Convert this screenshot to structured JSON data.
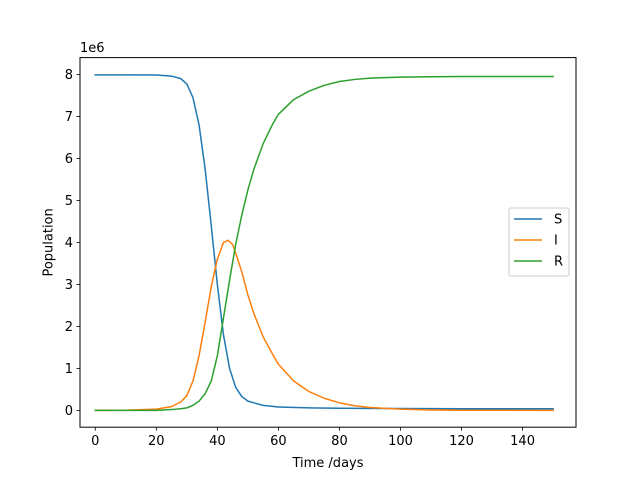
{
  "chart_data": {
    "type": "line",
    "xlabel": "Time /days",
    "ylabel": "Population",
    "y_offset_label": "1e6",
    "xlim": [
      -5,
      157.5
    ],
    "ylim": [
      -0.4,
      8.4
    ],
    "x_ticks": [
      0,
      20,
      40,
      60,
      80,
      100,
      120,
      140
    ],
    "y_ticks": [
      0,
      1,
      2,
      3,
      4,
      5,
      6,
      7,
      8
    ],
    "grid": false,
    "legend_position": "center-right",
    "series": [
      {
        "name": "S",
        "color": "#1f77b4",
        "points": [
          [
            0,
            7.99
          ],
          [
            10,
            7.99
          ],
          [
            20,
            7.985
          ],
          [
            25,
            7.96
          ],
          [
            28,
            7.9
          ],
          [
            30,
            7.77
          ],
          [
            32,
            7.45
          ],
          [
            34,
            6.8
          ],
          [
            36,
            5.75
          ],
          [
            38,
            4.4
          ],
          [
            40,
            3.0
          ],
          [
            42,
            1.8
          ],
          [
            44,
            1.0
          ],
          [
            46,
            0.55
          ],
          [
            48,
            0.33
          ],
          [
            50,
            0.22
          ],
          [
            55,
            0.12
          ],
          [
            60,
            0.08
          ],
          [
            70,
            0.06
          ],
          [
            80,
            0.05
          ],
          [
            100,
            0.045
          ],
          [
            120,
            0.04
          ],
          [
            150,
            0.04
          ]
        ]
      },
      {
        "name": "I",
        "color": "#ff7f0e",
        "points": [
          [
            0,
            0.0
          ],
          [
            10,
            0.005
          ],
          [
            20,
            0.03
          ],
          [
            25,
            0.09
          ],
          [
            28,
            0.2
          ],
          [
            30,
            0.35
          ],
          [
            32,
            0.7
          ],
          [
            34,
            1.3
          ],
          [
            36,
            2.1
          ],
          [
            38,
            2.95
          ],
          [
            40,
            3.6
          ],
          [
            42,
            4.0
          ],
          [
            43.5,
            4.05
          ],
          [
            45,
            3.95
          ],
          [
            46,
            3.75
          ],
          [
            48,
            3.3
          ],
          [
            50,
            2.75
          ],
          [
            52,
            2.3
          ],
          [
            55,
            1.75
          ],
          [
            58,
            1.35
          ],
          [
            60,
            1.1
          ],
          [
            65,
            0.7
          ],
          [
            70,
            0.45
          ],
          [
            75,
            0.29
          ],
          [
            80,
            0.18
          ],
          [
            85,
            0.11
          ],
          [
            90,
            0.07
          ],
          [
            100,
            0.03
          ],
          [
            110,
            0.01
          ],
          [
            120,
            0.005
          ],
          [
            150,
            0.0
          ]
        ]
      },
      {
        "name": "R",
        "color": "#2ca02c",
        "points": [
          [
            0,
            0.0
          ],
          [
            20,
            0.0
          ],
          [
            25,
            0.02
          ],
          [
            28,
            0.04
          ],
          [
            30,
            0.06
          ],
          [
            32,
            0.12
          ],
          [
            34,
            0.22
          ],
          [
            36,
            0.4
          ],
          [
            38,
            0.7
          ],
          [
            40,
            1.3
          ],
          [
            42,
            2.2
          ],
          [
            44,
            3.1
          ],
          [
            46,
            3.95
          ],
          [
            48,
            4.65
          ],
          [
            50,
            5.25
          ],
          [
            52,
            5.75
          ],
          [
            55,
            6.35
          ],
          [
            58,
            6.8
          ],
          [
            60,
            7.05
          ],
          [
            65,
            7.4
          ],
          [
            70,
            7.6
          ],
          [
            75,
            7.74
          ],
          [
            80,
            7.83
          ],
          [
            85,
            7.88
          ],
          [
            90,
            7.91
          ],
          [
            100,
            7.935
          ],
          [
            110,
            7.945
          ],
          [
            120,
            7.95
          ],
          [
            150,
            7.95
          ]
        ]
      }
    ]
  }
}
